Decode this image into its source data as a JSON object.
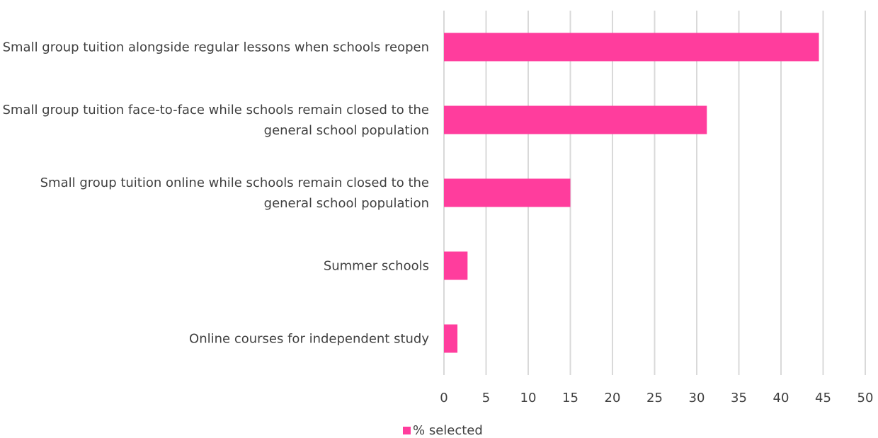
{
  "chart_data": {
    "type": "bar",
    "orientation": "horizontal",
    "categories": [
      "Small group tuition alongside regular lessons when schools reopen",
      "Small group tuition face-to-face while schools remain closed to the general school population",
      "Small group tuition online while schools remain closed to the general school population",
      "Summer schools",
      "Online courses for independent study"
    ],
    "series": [
      {
        "name": "% selected",
        "color": "#ff3d9d",
        "values": [
          44.5,
          31.2,
          15,
          2.8,
          1.6
        ]
      }
    ],
    "xlim": [
      0,
      50
    ],
    "xticks": [
      0,
      5,
      10,
      15,
      20,
      25,
      30,
      35,
      40,
      45,
      50
    ],
    "grid": true,
    "legend": "bottom"
  }
}
